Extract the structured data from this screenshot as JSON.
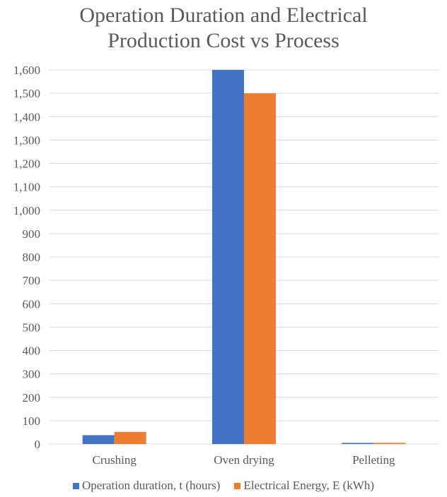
{
  "chart_data": {
    "type": "bar",
    "title_lines": [
      "Operation Duration and Electrical",
      "Production Cost vs Process"
    ],
    "categories": [
      "Crushing",
      "Oven drying",
      "Pelleting"
    ],
    "series": [
      {
        "name": "Operation duration, t (hours)",
        "color": "#4472C4",
        "values": [
          38,
          1600,
          5
        ]
      },
      {
        "name": "Electrical Energy, E (kWh)",
        "color": "#ED7D31",
        "values": [
          52,
          1500,
          5
        ]
      }
    ],
    "ylim": [
      0,
      1600
    ],
    "ytick_step": 100,
    "ytick_labels": [
      "0",
      "100",
      "200",
      "300",
      "400",
      "500",
      "600",
      "700",
      "800",
      "900",
      "1,000",
      "1,100",
      "1,200",
      "1,300",
      "1,400",
      "1,500",
      "1,600"
    ],
    "grid": true,
    "legend_position": "bottom",
    "xlabel": "",
    "ylabel": ""
  }
}
